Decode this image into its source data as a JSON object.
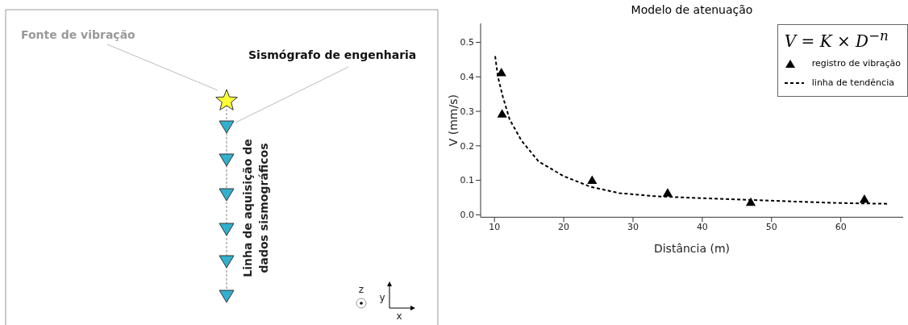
{
  "chart_data": [
    {
      "type": "other",
      "annotations": [
        "Fonte de vibração",
        "Sismógrafo de engenharia",
        "Linha de aquisição de dados sismográficos",
        "z",
        "y",
        "x"
      ]
    },
    {
      "type": "scatter",
      "title": "Modelo de atenuação",
      "xlabel": "Distância (m)",
      "ylabel": "V (mm/s)",
      "legend_title": "V = K × D$^{−n}$",
      "legend": "top right",
      "xlim": [
        8,
        69
      ],
      "ylim": [
        -0.007,
        0.555
      ],
      "xticks": [
        10,
        20,
        30,
        40,
        50,
        60
      ],
      "yticks": [
        {
          "value": 0,
          "label": "0.0"
        },
        0.1,
        0.2,
        0.3,
        0.4,
        0.5
      ],
      "series": [
        {
          "name": "registro de vibração",
          "type": "scatter",
          "marker": "triangle",
          "color": "#000000",
          "x": [
            11,
            11.1,
            24.1,
            35,
            47,
            63.4
          ],
          "values": [
            0.41,
            0.29,
            0.098,
            0.061,
            0.034,
            0.043
          ]
        },
        {
          "name": "linha de tendência",
          "type": "line",
          "marker": "none",
          "line_style": "dashed",
          "color": "#000000",
          "x": [
            10.1,
            10.5,
            11.2,
            12.2,
            13.9,
            16.4,
            20,
            23.9,
            28,
            33,
            40,
            47,
            53.9,
            60,
            66.8
          ],
          "values": [
            0.46,
            0.4,
            0.343,
            0.276,
            0.215,
            0.154,
            0.112,
            0.081,
            0.063,
            0.054,
            0.048,
            0.043,
            0.038,
            0.034,
            0.032
          ]
        }
      ]
    }
  ]
}
